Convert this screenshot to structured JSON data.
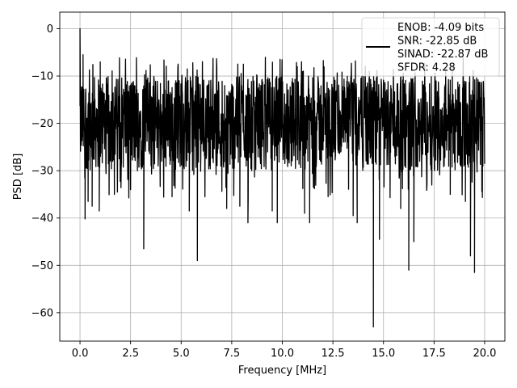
{
  "chart_data": {
    "type": "line",
    "title": "",
    "xlabel": "Frequency [MHz]",
    "ylabel": "PSD [dB]",
    "xlim": [
      -1.0,
      21.0
    ],
    "ylim": [
      -66.0,
      3.5
    ],
    "xticks": [
      0.0,
      2.5,
      5.0,
      7.5,
      10.0,
      12.5,
      15.0,
      17.5,
      20.0
    ],
    "xtick_labels": [
      "0.0",
      "2.5",
      "5.0",
      "7.5",
      "10.0",
      "12.5",
      "15.0",
      "17.5",
      "20.0"
    ],
    "yticks": [
      0,
      -10,
      -20,
      -30,
      -40,
      -50,
      -60
    ],
    "ytick_labels": [
      "0",
      "−10",
      "−20",
      "−30",
      "−40",
      "−50",
      "−60"
    ],
    "grid": true,
    "legend": {
      "placement": "top-right",
      "line_color": "#000000",
      "lines": [
        "ENOB: -4.09 bits",
        "SNR: -22.85 dB",
        "SINAD: -22.87 dB",
        "SFDR: 4.28"
      ]
    },
    "series": [
      {
        "color": "#000000",
        "noise_band_db": [
          -30,
          -10
        ],
        "num_points": 1600,
        "points": [
          {
            "x": 0.0,
            "y": 0.0
          },
          {
            "x": 0.05,
            "y": -24.3
          },
          {
            "x": 0.15,
            "y": -5.5
          },
          {
            "x": 0.25,
            "y": -40.2
          },
          {
            "x": 0.4,
            "y": -36.5
          },
          {
            "x": 0.6,
            "y": -37.5
          },
          {
            "x": 0.95,
            "y": -38.5
          },
          {
            "x": 1.0,
            "y": -7.0
          },
          {
            "x": 1.7,
            "y": -35.0
          },
          {
            "x": 2.5,
            "y": -34.0
          },
          {
            "x": 3.15,
            "y": -46.5
          },
          {
            "x": 4.55,
            "y": -35.5
          },
          {
            "x": 5.3,
            "y": -8.5
          },
          {
            "x": 5.4,
            "y": -38.5
          },
          {
            "x": 5.8,
            "y": -49.0
          },
          {
            "x": 7.25,
            "y": -38.0
          },
          {
            "x": 7.9,
            "y": -37.5
          },
          {
            "x": 8.3,
            "y": -41.0
          },
          {
            "x": 9.5,
            "y": -38.5
          },
          {
            "x": 9.75,
            "y": -41.0
          },
          {
            "x": 11.1,
            "y": -39.0
          },
          {
            "x": 11.35,
            "y": -41.0
          },
          {
            "x": 13.5,
            "y": -39.5
          },
          {
            "x": 13.7,
            "y": -41.0
          },
          {
            "x": 14.3,
            "y": -9.0
          },
          {
            "x": 14.5,
            "y": -63.0
          },
          {
            "x": 14.8,
            "y": -44.5
          },
          {
            "x": 15.85,
            "y": -38.0
          },
          {
            "x": 16.25,
            "y": -51.0
          },
          {
            "x": 16.5,
            "y": -45.0
          },
          {
            "x": 18.3,
            "y": -35.0
          },
          {
            "x": 19.05,
            "y": -36.5
          },
          {
            "x": 19.3,
            "y": -48.0
          },
          {
            "x": 19.5,
            "y": -51.5
          }
        ]
      }
    ]
  }
}
